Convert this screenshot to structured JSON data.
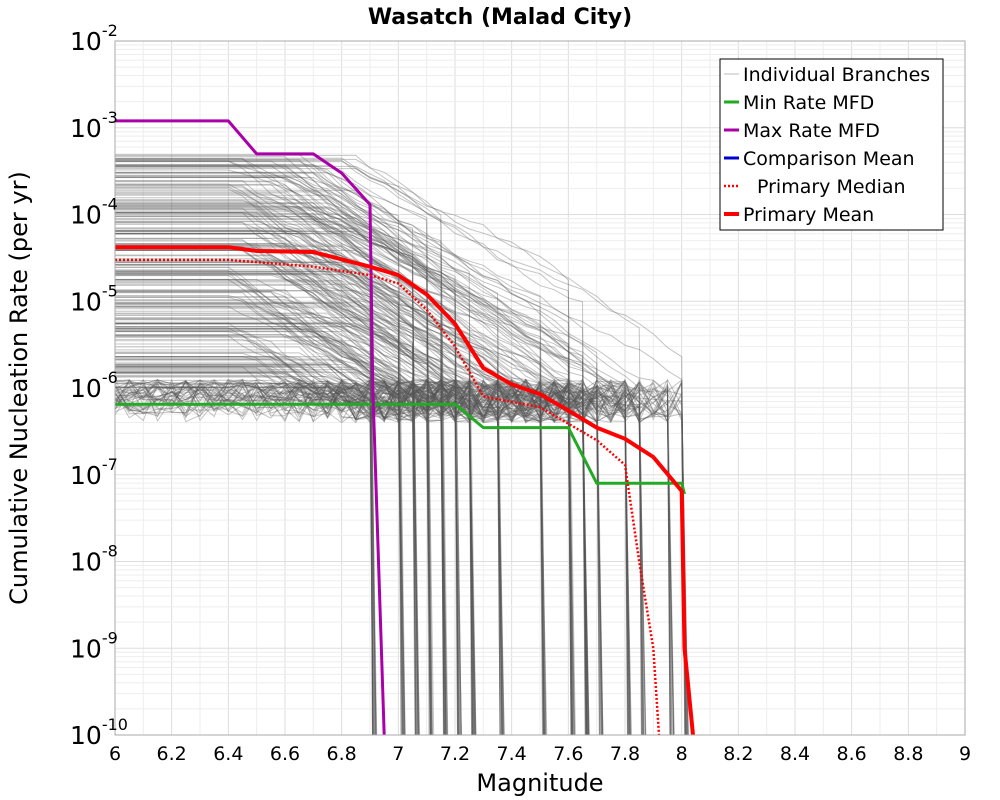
{
  "chart_data": {
    "type": "line",
    "title": "Wasatch (Malad City)",
    "xlabel": "Magnitude",
    "ylabel": "Cumulative Nucleation Rate (per yr)",
    "xlim": [
      6,
      9
    ],
    "ylim": [
      1e-10,
      0.01
    ],
    "y_scale": "log",
    "grid": true,
    "legend_position": "top-right",
    "x_tick_labels": [
      "6",
      "6.2",
      "6.4",
      "6.6",
      "6.8",
      "7",
      "7.2",
      "7.4",
      "7.6",
      "7.8",
      "8",
      "8.2",
      "8.4",
      "8.6",
      "8.8",
      "9"
    ],
    "y_tick_labels": [
      {
        "base": "10",
        "exp": "-10"
      },
      {
        "base": "10",
        "exp": "-9"
      },
      {
        "base": "10",
        "exp": "-8"
      },
      {
        "base": "10",
        "exp": "-7"
      },
      {
        "base": "10",
        "exp": "-6"
      },
      {
        "base": "10",
        "exp": "-5"
      },
      {
        "base": "10",
        "exp": "-4"
      },
      {
        "base": "10",
        "exp": "-3"
      },
      {
        "base": "10",
        "exp": "-2"
      }
    ],
    "series": [
      {
        "name": "Individual Branches",
        "color": "#555555",
        "style": "thin",
        "note_values": "many branch curves; envelope shown",
        "x": [
          6.0,
          6.4,
          6.7,
          6.9,
          7.0,
          7.2,
          7.4,
          7.6,
          7.8,
          8.0
        ],
        "values": [
          0.0005,
          0.0005,
          0.0004,
          0.0002,
          8e-05,
          1e-05,
          3e-06,
          1.5e-06,
          1.2e-06,
          1.2e-06
        ]
      },
      {
        "name": "Min Rate MFD",
        "color": "#22aa22",
        "style": "solid",
        "x": [
          6.0,
          7.2,
          7.3,
          7.6,
          7.7,
          7.8,
          8.0,
          8.01
        ],
        "values": [
          6.5e-07,
          6.5e-07,
          3.5e-07,
          3.5e-07,
          8e-08,
          8e-08,
          8e-08,
          6e-08
        ]
      },
      {
        "name": "Max Rate MFD",
        "color": "#aa00aa",
        "style": "solid",
        "x": [
          6.0,
          6.4,
          6.5,
          6.7,
          6.8,
          6.9,
          6.91,
          6.95
        ],
        "values": [
          0.0012,
          0.0012,
          0.0005,
          0.0005,
          0.0003,
          0.00013,
          1e-06,
          1e-10
        ]
      },
      {
        "name": "Comparison Mean",
        "color": "#0000cc",
        "style": "solid",
        "x": [],
        "values": []
      },
      {
        "name": "Primary Median",
        "color": "#ff0000",
        "style": "dotted",
        "x": [
          6.0,
          6.4,
          6.7,
          6.9,
          7.0,
          7.1,
          7.2,
          7.3,
          7.5,
          7.7,
          7.8,
          7.85,
          7.9,
          7.92
        ],
        "values": [
          3e-05,
          3e-05,
          2.5e-05,
          2e-05,
          1.6e-05,
          8e-06,
          3e-06,
          8e-07,
          6e-07,
          2.5e-07,
          1.3e-07,
          1e-08,
          1e-09,
          1e-10
        ]
      },
      {
        "name": "Primary Mean",
        "color": "#ff0000",
        "style": "thick",
        "x": [
          6.0,
          6.4,
          6.5,
          6.7,
          6.9,
          7.0,
          7.1,
          7.2,
          7.3,
          7.4,
          7.5,
          7.6,
          7.7,
          7.8,
          7.9,
          8.0,
          8.01,
          8.04
        ],
        "values": [
          4.2e-05,
          4.2e-05,
          3.8e-05,
          3.7e-05,
          2.5e-05,
          2e-05,
          1.2e-05,
          5.5e-06,
          1.7e-06,
          1.1e-06,
          8.5e-07,
          5.5e-07,
          3.5e-07,
          2.6e-07,
          1.6e-07,
          6.5e-08,
          1e-09,
          1e-10
        ]
      }
    ]
  }
}
